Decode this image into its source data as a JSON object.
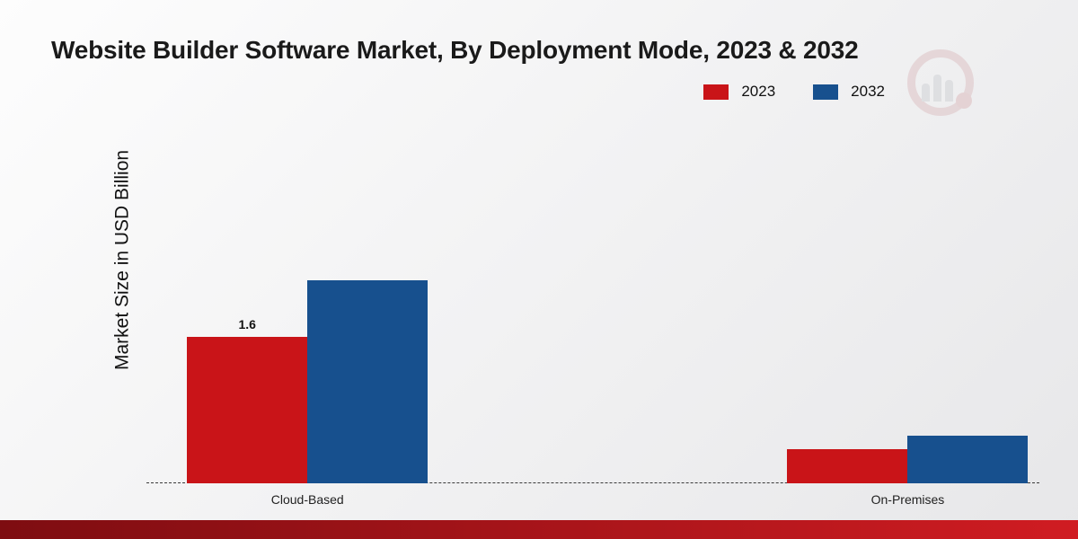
{
  "page": {
    "title": "Website Builder Software Market, By Deployment Mode, 2023 & 2032",
    "ylabel": "Market Size in USD Billion"
  },
  "legend": {
    "items": [
      {
        "label": "2023",
        "color": "#c91418"
      },
      {
        "label": "2032",
        "color": "#17508e"
      }
    ]
  },
  "chart_data": {
    "type": "bar",
    "title": "Website Builder Software Market, By Deployment Mode, 2023 & 2032",
    "xlabel": "",
    "ylabel": "Market Size in USD Billion",
    "categories": [
      "Cloud-Based",
      "On-Premises"
    ],
    "series": [
      {
        "name": "2023",
        "color": "#c91418",
        "values": [
          1.6,
          0.37
        ]
      },
      {
        "name": "2032",
        "color": "#17508e",
        "values": [
          2.22,
          0.52
        ]
      }
    ],
    "ylim": [
      0,
      2.5
    ],
    "grid": false,
    "legend_position": "top-right",
    "baseline_style": "dashed",
    "data_labels": [
      {
        "series": "2023",
        "category": "Cloud-Based",
        "text": "1.6"
      }
    ]
  },
  "colors": {
    "accent_red": "#c91418",
    "accent_blue": "#17508e",
    "footer_gradient_left": "#7e0d11",
    "footer_gradient_right": "#d01c22"
  },
  "icons": {
    "watermark": "company-logo-watermark"
  }
}
